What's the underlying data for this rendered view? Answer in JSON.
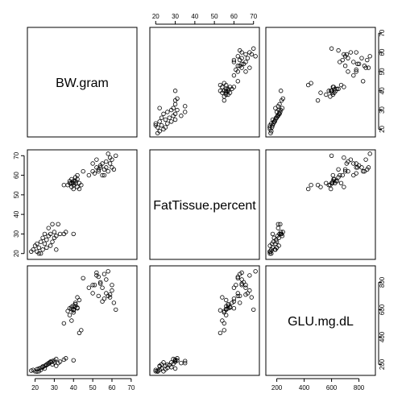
{
  "chart_data": {
    "type": "scatter",
    "variables": [
      {
        "name": "BW.gram",
        "range": [
          16,
          73
        ],
        "ticks": [
          20,
          30,
          40,
          50,
          60,
          70
        ]
      },
      {
        "name": "FatTissue.percent",
        "range": [
          17,
          73
        ],
        "ticks": [
          20,
          30,
          40,
          50,
          60,
          70
        ]
      },
      {
        "name": "GLU.mg.dL",
        "range": [
          120,
          920
        ],
        "ticks": [
          200,
          400,
          600,
          800
        ]
      }
    ],
    "points": [
      [
        18,
        21,
        155
      ],
      [
        19,
        22,
        160
      ],
      [
        20,
        24,
        150
      ],
      [
        21,
        21,
        148
      ],
      [
        21,
        25,
        165
      ],
      [
        22,
        20,
        150
      ],
      [
        22,
        23,
        170
      ],
      [
        23,
        26,
        175
      ],
      [
        23,
        20,
        160
      ],
      [
        24,
        28,
        180
      ],
      [
        24,
        22,
        185
      ],
      [
        25,
        25,
        190
      ],
      [
        25,
        30,
        170
      ],
      [
        26,
        27,
        195
      ],
      [
        26,
        23,
        200
      ],
      [
        27,
        29,
        205
      ],
      [
        27,
        33,
        210
      ],
      [
        28,
        24,
        215
      ],
      [
        28,
        30,
        220
      ],
      [
        29,
        26,
        200
      ],
      [
        29,
        35,
        225
      ],
      [
        30,
        28,
        215
      ],
      [
        30,
        31,
        230
      ],
      [
        31,
        22,
        190
      ],
      [
        31,
        29,
        240
      ],
      [
        32,
        35,
        210
      ],
      [
        33,
        30,
        220
      ],
      [
        35,
        30,
        235
      ],
      [
        36,
        31,
        245
      ],
      [
        40,
        30,
        230
      ],
      [
        35,
        55,
        500
      ],
      [
        37,
        55,
        590
      ],
      [
        38,
        56,
        560
      ],
      [
        38,
        57,
        610
      ],
      [
        39,
        54,
        520
      ],
      [
        39,
        58,
        620
      ],
      [
        40,
        55,
        580
      ],
      [
        40,
        56,
        600
      ],
      [
        41,
        57,
        640
      ],
      [
        41,
        59,
        650
      ],
      [
        42,
        54,
        690
      ],
      [
        42,
        60,
        610
      ],
      [
        43,
        56,
        670
      ],
      [
        43,
        53,
        430
      ],
      [
        44,
        55,
        450
      ],
      [
        40,
        53,
        595
      ],
      [
        41,
        56,
        625
      ],
      [
        39,
        56,
        605
      ],
      [
        42,
        58,
        615
      ],
      [
        40,
        57,
        630
      ],
      [
        45,
        62,
        830
      ],
      [
        48,
        60,
        760
      ],
      [
        50,
        66,
        780
      ],
      [
        50,
        62,
        720
      ],
      [
        52,
        64,
        870
      ],
      [
        52,
        68,
        850
      ],
      [
        53,
        63,
        700
      ],
      [
        54,
        65,
        800
      ],
      [
        55,
        60,
        660
      ],
      [
        55,
        66,
        760
      ],
      [
        56,
        63,
        860
      ],
      [
        57,
        67,
        720
      ],
      [
        57,
        64,
        820
      ],
      [
        58,
        62,
        700
      ],
      [
        59,
        69,
        690
      ],
      [
        60,
        64,
        780
      ],
      [
        60,
        68,
        740
      ],
      [
        61,
        63,
        650
      ],
      [
        62,
        70,
        600
      ],
      [
        58,
        71,
        880
      ],
      [
        53,
        62,
        840
      ],
      [
        56,
        60,
        680
      ],
      [
        54,
        64,
        790
      ],
      [
        59,
        66,
        710
      ],
      [
        51,
        61,
        780
      ]
    ]
  }
}
